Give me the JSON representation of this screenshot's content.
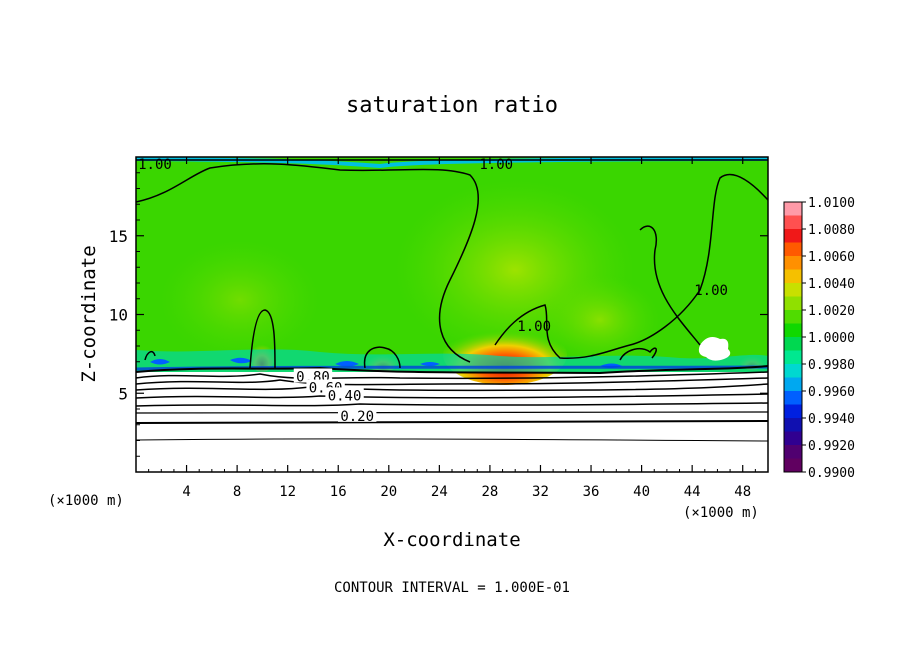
{
  "chart_data": {
    "type": "heatmap",
    "title": "saturation ratio",
    "xlabel": "X-coordinate",
    "ylabel": "Z-coordinate",
    "x_unit_left": "(×1000 m)",
    "x_unit_right": "(×1000 m)",
    "xlim": [
      0,
      50
    ],
    "ylim": [
      0,
      20
    ],
    "x_ticks": [
      4,
      8,
      12,
      16,
      20,
      24,
      28,
      32,
      36,
      40,
      44,
      48
    ],
    "y_ticks": [
      5,
      10,
      15
    ],
    "footer": "CONTOUR INTERVAL = 1.000E-01",
    "colorbar": {
      "range": [
        0.99,
        1.01
      ],
      "labels": [
        "1.0100",
        "1.0080",
        "1.0060",
        "1.0040",
        "1.0020",
        "1.0000",
        "0.9980",
        "0.9960",
        "0.9940",
        "0.9920",
        "0.9900"
      ],
      "colors": [
        "#ff9aa8",
        "#ff5050",
        "#f01818",
        "#ff5a00",
        "#ff9000",
        "#f5c000",
        "#c8e000",
        "#90e000",
        "#50dc00",
        "#10d800",
        "#00d850",
        "#00e890",
        "#00d8d0",
        "#00a8f0",
        "#0060ff",
        "#0020e0",
        "#1010b0",
        "#300090",
        "#500070",
        "#600060"
      ]
    },
    "contour_labels": [
      {
        "text": "1.00",
        "x": 1.5,
        "z": 19.5
      },
      {
        "text": "1.00",
        "x": 28.5,
        "z": 19.5
      },
      {
        "text": "1.00",
        "x": 45.5,
        "z": 11.5
      },
      {
        "text": "1.00",
        "x": 31.5,
        "z": 9.2
      },
      {
        "text": "0.80",
        "x": 14,
        "z": 6.0
      },
      {
        "text": "0.60",
        "x": 15,
        "z": 5.3
      },
      {
        "text": "0.40",
        "x": 16.5,
        "z": 4.8
      },
      {
        "text": "0.20",
        "x": 17.5,
        "z": 3.5
      }
    ]
  }
}
